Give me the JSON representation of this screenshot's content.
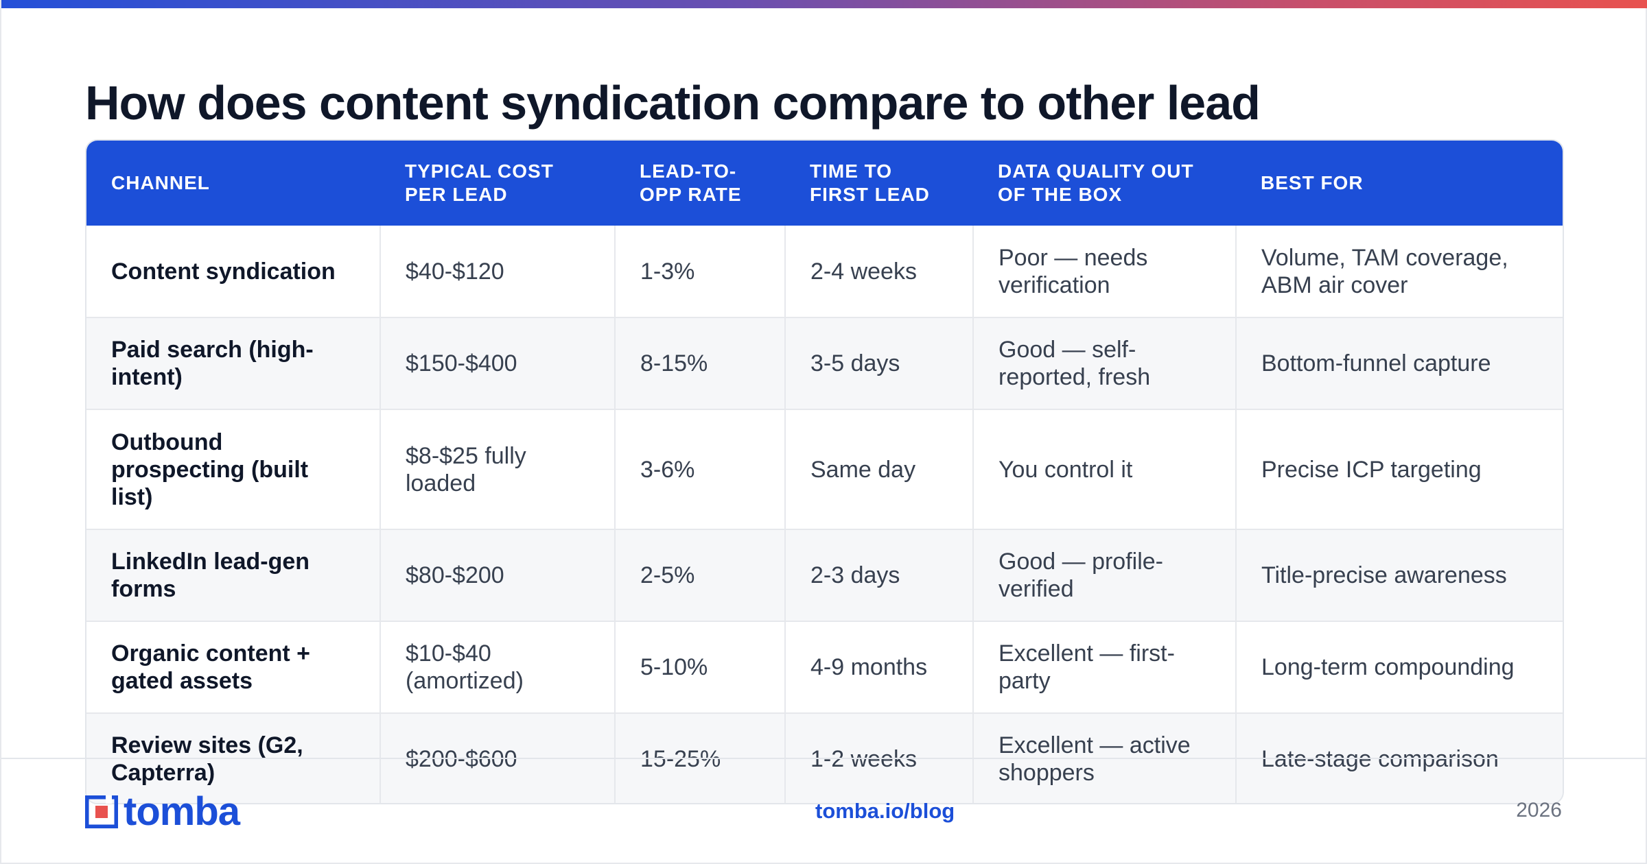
{
  "title": "How does content syndication compare to other lead",
  "table": {
    "headers": [
      "CHANNEL",
      "TYPICAL COST PER LEAD",
      "LEAD-TO-OPP RATE",
      "TIME TO FIRST LEAD",
      "DATA QUALITY OUT OF THE BOX",
      "BEST FOR"
    ],
    "rows": [
      [
        "Content syndication",
        "$40-$120",
        "1-3%",
        "2-4 weeks",
        "Poor — needs verification",
        "Volume, TAM coverage, ABM air cover"
      ],
      [
        "Paid search (high-intent)",
        "$150-$400",
        "8-15%",
        "3-5 days",
        "Good — self-reported, fresh",
        "Bottom-funnel capture"
      ],
      [
        "Outbound prospecting (built list)",
        "$8-$25 fully loaded",
        "3-6%",
        "Same day",
        "You control it",
        "Precise ICP targeting"
      ],
      [
        "LinkedIn lead-gen forms",
        "$80-$200",
        "2-5%",
        "2-3 days",
        "Good — profile-verified",
        "Title-precise awareness"
      ],
      [
        "Organic content + gated assets",
        "$10-$40 (amortized)",
        "5-10%",
        "4-9 months",
        "Excellent — first-party",
        "Long-term compounding"
      ],
      [
        "Review sites (G2, Capterra)",
        "$200-$600",
        "15-25%",
        "1-2 weeks",
        "Excellent — active shoppers",
        "Late-stage comparison"
      ]
    ]
  },
  "footer": {
    "logo_text": "tomba",
    "link": "tomba.io/blog",
    "year": "2026"
  },
  "colors": {
    "accent": "#1c4fd8",
    "title": "#0f1729",
    "body_text": "#37404f"
  },
  "icons": {
    "logo": "tomba-logo-icon"
  }
}
